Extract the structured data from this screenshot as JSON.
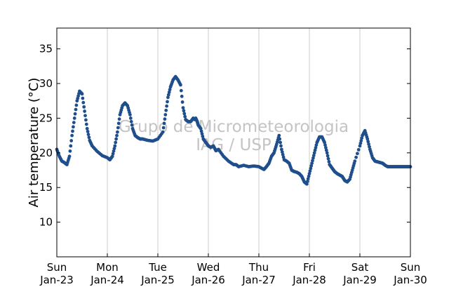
{
  "chart_data": {
    "type": "scatter",
    "ylabel": "Air temperature (°C)",
    "watermark": [
      "Grupo de Micrometeorologia",
      "IAG / USP"
    ],
    "xlim": [
      0,
      7
    ],
    "ylim": [
      5,
      38
    ],
    "yticks": [
      10,
      15,
      20,
      25,
      30,
      35
    ],
    "xticks": [
      {
        "x": 0,
        "day": "Sun",
        "date": "Jan-23"
      },
      {
        "x": 1,
        "day": "Mon",
        "date": "Jan-24"
      },
      {
        "x": 2,
        "day": "Tue",
        "date": "Jan-25"
      },
      {
        "x": 3,
        "day": "Wed",
        "date": "Jan-26"
      },
      {
        "x": 4,
        "day": "Thu",
        "date": "Jan-27"
      },
      {
        "x": 5,
        "day": "Fri",
        "date": "Jan-28"
      },
      {
        "x": 6,
        "day": "Sat",
        "date": "Jan-29"
      },
      {
        "x": 7,
        "day": "Sun",
        "date": "Jan-30"
      }
    ],
    "grid": "vertical",
    "series_color": "#1f4e8c",
    "series": [
      {
        "x": [
          0,
          0.05,
          0.1,
          0.15,
          0.2,
          0.25,
          0.3,
          0.35,
          0.4,
          0.45,
          0.5,
          0.55,
          0.6,
          0.65,
          0.7,
          0.8,
          0.9,
          1.0,
          1.05,
          1.1,
          1.15,
          1.2,
          1.25,
          1.3,
          1.35,
          1.4,
          1.45,
          1.5,
          1.55,
          1.6,
          1.65,
          1.7,
          1.8,
          1.9,
          2.0,
          2.1,
          2.15,
          2.2,
          2.25,
          2.3,
          2.35,
          2.4,
          2.45,
          2.5,
          2.55,
          2.6,
          2.65,
          2.7,
          2.73,
          2.75,
          2.78,
          2.8,
          2.85,
          2.9,
          2.95,
          3.0,
          3.05,
          3.1,
          3.15,
          3.2,
          3.3,
          3.4,
          3.5,
          3.55,
          3.6,
          3.7,
          3.8,
          3.9,
          4.0,
          4.1,
          4.15,
          4.2,
          4.25,
          4.3,
          4.35,
          4.4,
          4.45,
          4.5,
          4.55,
          4.6,
          4.65,
          4.7,
          4.75,
          4.8,
          4.85,
          4.9,
          4.95,
          5.0,
          5.05,
          5.1,
          5.15,
          5.2,
          5.25,
          5.3,
          5.35,
          5.4,
          5.45,
          5.5,
          5.55,
          5.6,
          5.65,
          5.7,
          5.75,
          5.8,
          5.85,
          5.9,
          6.0,
          6.05,
          6.1,
          6.15,
          6.2,
          6.25,
          6.3,
          6.35,
          6.4,
          6.45,
          6.5,
          6.55,
          6.6,
          6.65,
          6.7,
          6.75,
          6.8,
          6.85,
          6.9,
          6.95,
          7.0
        ],
        "y": [
          20.5,
          19.5,
          18.8,
          18.6,
          18.3,
          19.5,
          22.5,
          25.0,
          27.5,
          28.9,
          28.5,
          26.0,
          23.5,
          21.8,
          21.0,
          20.2,
          19.6,
          19.3,
          19.0,
          19.5,
          21.0,
          23.0,
          25.5,
          26.8,
          27.2,
          26.8,
          25.5,
          23.5,
          22.5,
          22.2,
          22.0,
          22.0,
          21.8,
          21.7,
          22.0,
          23.0,
          25.5,
          28.0,
          29.5,
          30.5,
          31.0,
          30.5,
          29.8,
          26.5,
          24.8,
          24.5,
          24.5,
          25.0,
          24.8,
          25.0,
          24.5,
          24.0,
          23.5,
          22.0,
          21.5,
          21.0,
          20.8,
          21.0,
          20.3,
          20.5,
          19.5,
          18.8,
          18.3,
          18.3,
          18.0,
          18.2,
          18.0,
          18.1,
          18.0,
          17.6,
          18.0,
          18.5,
          19.5,
          20.0,
          21.2,
          22.5,
          20.5,
          19.0,
          18.8,
          18.5,
          17.5,
          17.3,
          17.2,
          17.0,
          16.6,
          15.8,
          15.5,
          17.0,
          18.5,
          20.0,
          21.5,
          22.3,
          22.3,
          21.5,
          20.0,
          18.3,
          17.8,
          17.3,
          17.0,
          16.8,
          16.6,
          16.0,
          15.8,
          16.2,
          17.5,
          18.8,
          21.0,
          22.5,
          23.2,
          22.0,
          20.5,
          19.3,
          18.8,
          18.7,
          18.6,
          18.5,
          18.2,
          18.0,
          18.0,
          18.0,
          18.0,
          18.0,
          18.0,
          18.0,
          18.0,
          18.0,
          18.0
        ]
      }
    ]
  }
}
